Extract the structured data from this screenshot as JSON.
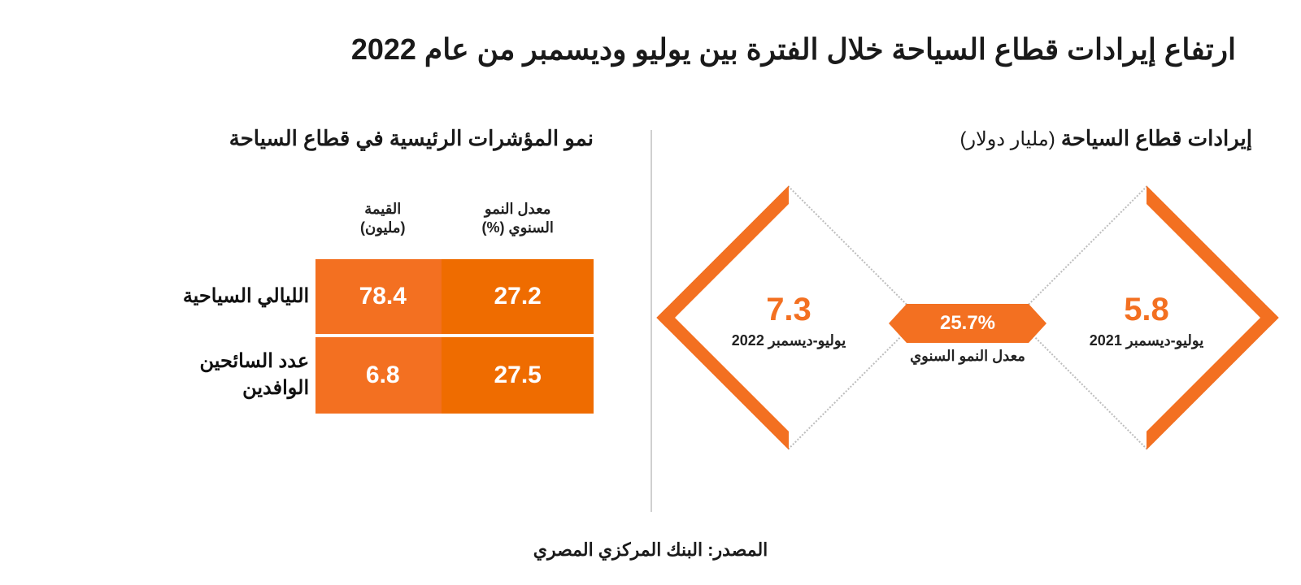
{
  "colors": {
    "accent": "#f37021",
    "accent_light": "#ef6c00",
    "text": "#121212",
    "muted_border": "#bdbdbd",
    "background": "#ffffff"
  },
  "title": "ارتفاع إيرادات قطاع السياحة خلال الفترة بين يوليو وديسمبر من عام 2022",
  "right_panel": {
    "title_main": "إيرادات قطاع السياحة",
    "title_unit": "(مليار دولار)",
    "period_2021": {
      "value": "5.8",
      "label": "يوليو-ديسمبر 2021",
      "value_color": "#f37021"
    },
    "period_2022": {
      "value": "7.3",
      "label": "يوليو-ديسمبر 2022",
      "value_color": "#f37021"
    },
    "growth": {
      "value": "25.7%",
      "label": "معدل النمو السنوي"
    }
  },
  "left_panel": {
    "title": "نمو المؤشرات الرئيسية في قطاع السياحة",
    "columns": {
      "value": "القيمة\n(مليون)",
      "growth": "معدل النمو\nالسنوي (%)"
    },
    "rows": [
      {
        "label": "الليالي السياحية",
        "value": "78.4",
        "growth": "27.2"
      },
      {
        "label": "عدد السائحين الوافدين",
        "value": "6.8",
        "growth": "27.5"
      }
    ]
  },
  "source": "المصدر: البنك المركزي المصري"
}
